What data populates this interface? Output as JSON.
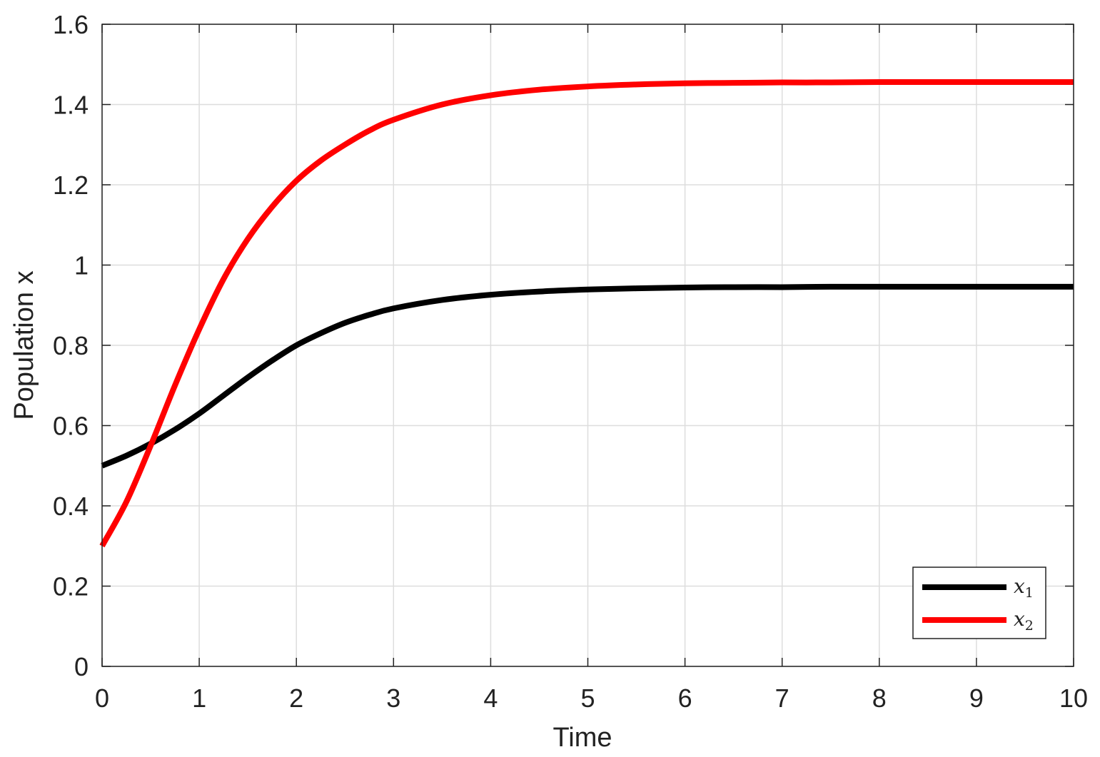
{
  "chart_data": {
    "type": "line",
    "title": "",
    "xlabel": "Time",
    "ylabel": "Population x",
    "xlim": [
      0,
      10
    ],
    "ylim": [
      0,
      1.6
    ],
    "x_ticks": [
      "0",
      "1",
      "2",
      "3",
      "4",
      "5",
      "6",
      "7",
      "8",
      "9",
      "10"
    ],
    "y_ticks": [
      "0",
      "0.2",
      "0.4",
      "0.6",
      "0.8",
      "1",
      "1.2",
      "1.4",
      "1.6"
    ],
    "grid": true,
    "legend_position": "bottom-right",
    "x": [
      0,
      0.25,
      0.5,
      0.75,
      1,
      1.25,
      1.5,
      1.75,
      2,
      2.25,
      2.5,
      2.75,
      3,
      3.5,
      4,
      4.5,
      5,
      5.5,
      6,
      6.5,
      7,
      7.5,
      8,
      8.5,
      9,
      9.5,
      10
    ],
    "series": [
      {
        "name": "x",
        "subscript": "1",
        "color": "#000000",
        "values": [
          0.5,
          0.525,
          0.555,
          0.59,
          0.63,
          0.675,
          0.72,
          0.762,
          0.8,
          0.83,
          0.856,
          0.876,
          0.892,
          0.913,
          0.926,
          0.934,
          0.939,
          0.942,
          0.944,
          0.945,
          0.945,
          0.946,
          0.946,
          0.946,
          0.946,
          0.946,
          0.946
        ]
      },
      {
        "name": "x",
        "subscript": "2",
        "color": "#ff0000",
        "values": [
          0.3,
          0.41,
          0.55,
          0.7,
          0.84,
          0.965,
          1.065,
          1.145,
          1.21,
          1.26,
          1.3,
          1.335,
          1.362,
          1.4,
          1.423,
          1.437,
          1.445,
          1.45,
          1.453,
          1.454,
          1.455,
          1.455,
          1.456,
          1.456,
          1.456,
          1.456,
          1.456
        ]
      }
    ]
  }
}
